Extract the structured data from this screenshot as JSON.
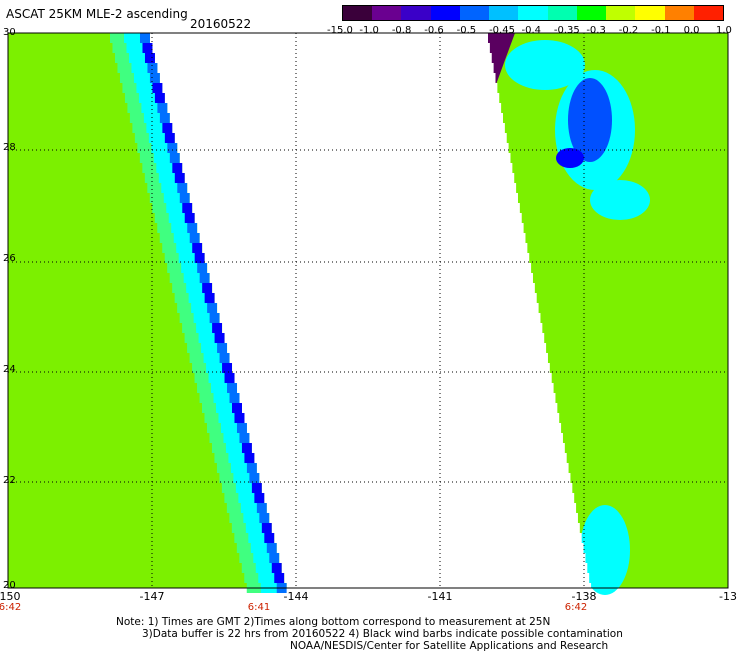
{
  "header": {
    "title": "ASCAT 25KM MLE-2 ascending",
    "date": "20160522"
  },
  "legend": {
    "labels": [
      "-15.0",
      "-1.0",
      "-0.8",
      "-0.6",
      "-0.5",
      "-0.45",
      "-0.4",
      "-0.35",
      "-0.3",
      "-0.2",
      "-0.1",
      "0.0",
      "1.0"
    ],
    "colors": [
      "#3a003a",
      "#6a0090",
      "#3a00c8",
      "#0000ff",
      "#0064ff",
      "#00c0ff",
      "#00ffff",
      "#00ffb0",
      "#00ff00",
      "#c0ff00",
      "#ffff00",
      "#ff8000",
      "#ff2000"
    ]
  },
  "axes": {
    "x_ticks": [
      "-150",
      "-147",
      "-144",
      "-141",
      "-138",
      "-13"
    ],
    "y_ticks": [
      "30",
      "28",
      "26",
      "24",
      "22",
      "20"
    ]
  },
  "pass_times": [
    "6:42",
    "6:41",
    "6:42"
  ],
  "note": {
    "line1": "Note: 1) Times are GMT 2)Times along bottom correspond to measurement at 25N",
    "line2": "3)Data buffer is 22 hrs from 20160522 4) Black wind barbs indicate possible contamination",
    "line3": "NOAA/NESDIS/Center for Satellite Applications and Research"
  },
  "colors": {
    "swath_green": "#7cf000",
    "swath_cyan": "#00ffff",
    "swath_blue": "#0000ff",
    "swath_purple": "#5a0060"
  }
}
